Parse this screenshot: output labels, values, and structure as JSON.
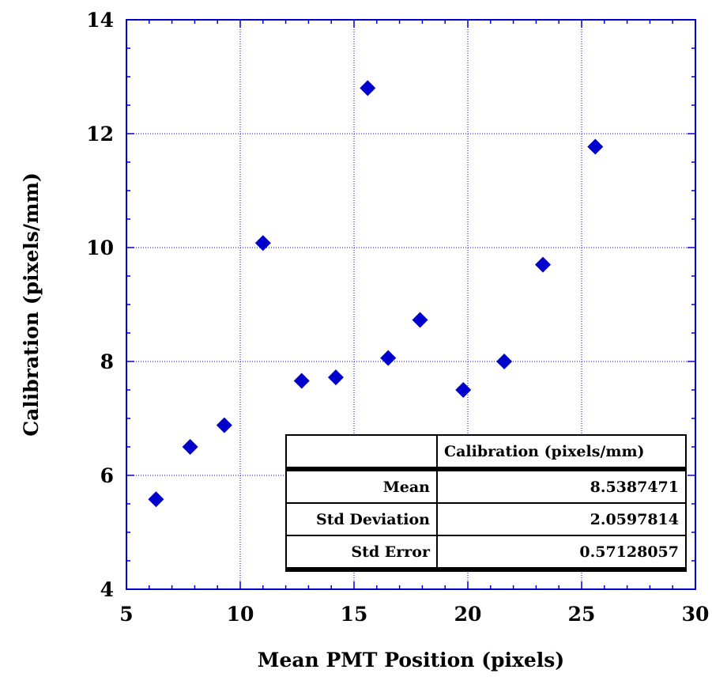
{
  "chart_data": {
    "type": "scatter",
    "title": "",
    "xlabel": "Mean PMT Position (pixels)",
    "ylabel": "Calibration (pixels/mm)",
    "xlim": [
      5,
      30
    ],
    "ylim": [
      4,
      14
    ],
    "x_ticks": [
      5,
      10,
      15,
      20,
      25,
      30
    ],
    "y_ticks": [
      4,
      6,
      8,
      10,
      12,
      14
    ],
    "x_tick_labels": [
      "5",
      "10",
      "15",
      "20",
      "25",
      "30"
    ],
    "y_tick_labels": [
      "4",
      "6",
      "8",
      "10",
      "12",
      "14"
    ],
    "grid": true,
    "marker": "diamond",
    "marker_color": "#0000cc",
    "grid_color": "#0000cc",
    "series": [
      {
        "points": [
          [
            6.3,
            5.58
          ],
          [
            7.8,
            6.5
          ],
          [
            9.3,
            6.88
          ],
          [
            11.0,
            10.08
          ],
          [
            12.7,
            7.66
          ],
          [
            14.2,
            7.72
          ],
          [
            15.6,
            12.8
          ],
          [
            16.5,
            8.06
          ],
          [
            17.9,
            8.73
          ],
          [
            19.8,
            7.5
          ],
          [
            21.6,
            8.0
          ],
          [
            23.3,
            9.7
          ],
          [
            25.6,
            11.77
          ]
        ]
      }
    ],
    "stats_table": {
      "header": [
        "",
        "Calibration (pixels/mm)"
      ],
      "rows": [
        {
          "label": "Mean",
          "value": "8.5387471"
        },
        {
          "label": "Std Deviation",
          "value": "2.0597814"
        },
        {
          "label": "Std Error",
          "value": "0.57128057"
        }
      ]
    }
  }
}
